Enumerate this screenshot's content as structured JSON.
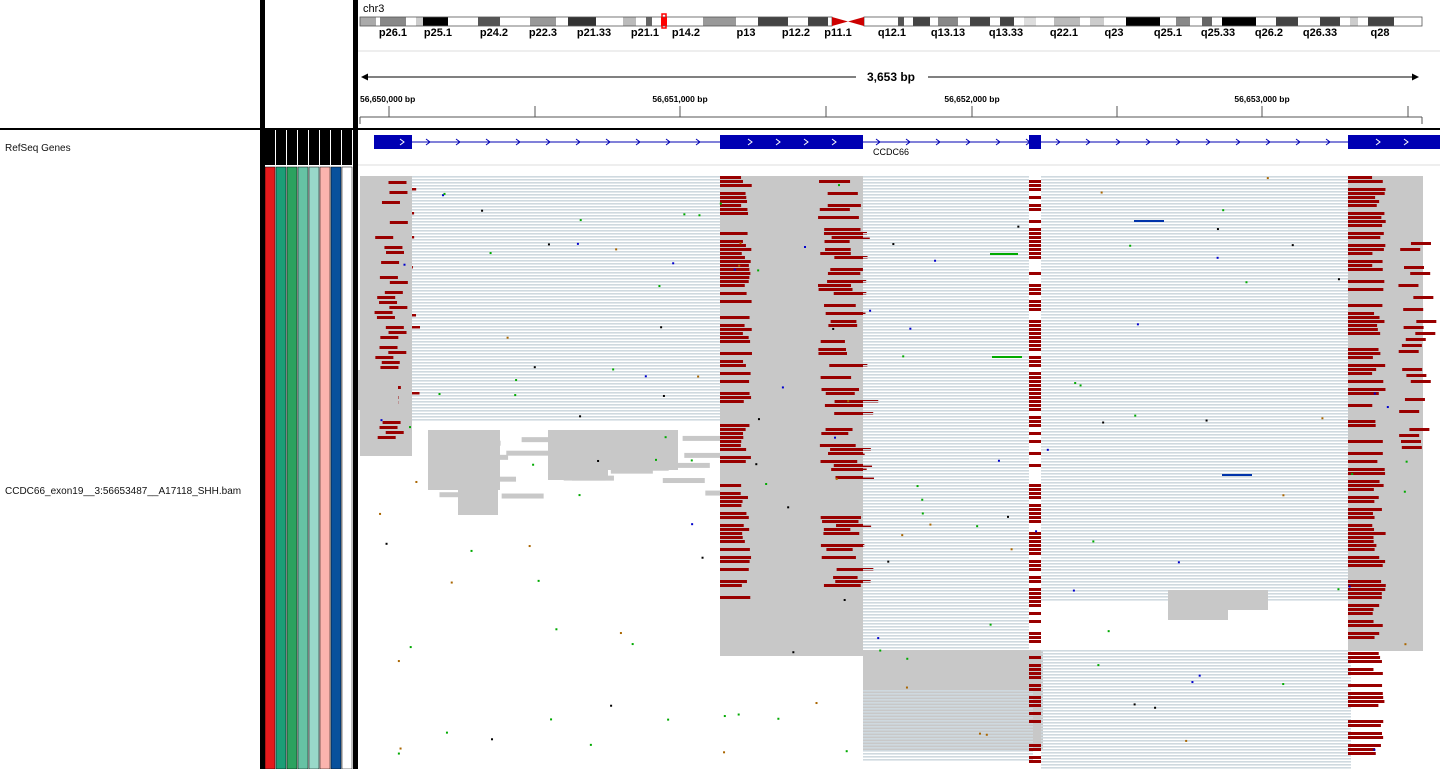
{
  "chromosome": "chr3",
  "cytobands": [
    "p26.1",
    "p25.1",
    "p24.2",
    "p22.3",
    "p21.33",
    "p21.1",
    "p14.2",
    "p13",
    "p12.2",
    "p11.1",
    "q12.1",
    "q13.13",
    "q13.33",
    "q22.1",
    "q23",
    "q25.1",
    "q25.33",
    "q26.2",
    "q26.33",
    "q28"
  ],
  "ruler": {
    "span_label": "3,653 bp",
    "ticks": [
      "56,650,000 bp",
      "56,651,000 bp",
      "56,652,000 bp",
      "56,653,000 bp"
    ]
  },
  "tracks": {
    "refseq_name": "RefSeq Genes",
    "bam_name": "CCDC66_exon19__3:56653487__A17118_SHH.bam"
  },
  "gene": {
    "name": "CCDC66",
    "color": "#0000b3"
  },
  "attribute_colors": [
    "#e41a1c",
    "#1b9e77",
    "#2ca25f",
    "#66c2a4",
    "#99d8c9",
    "#fbb4ae",
    "#08519c",
    "#ffffff"
  ],
  "colors": {
    "read": "#c8c8c8",
    "split_read": "#cfd9df",
    "soft_clip": "#990000",
    "centromere": "#cc0000",
    "current_region": "#ff0000"
  }
}
